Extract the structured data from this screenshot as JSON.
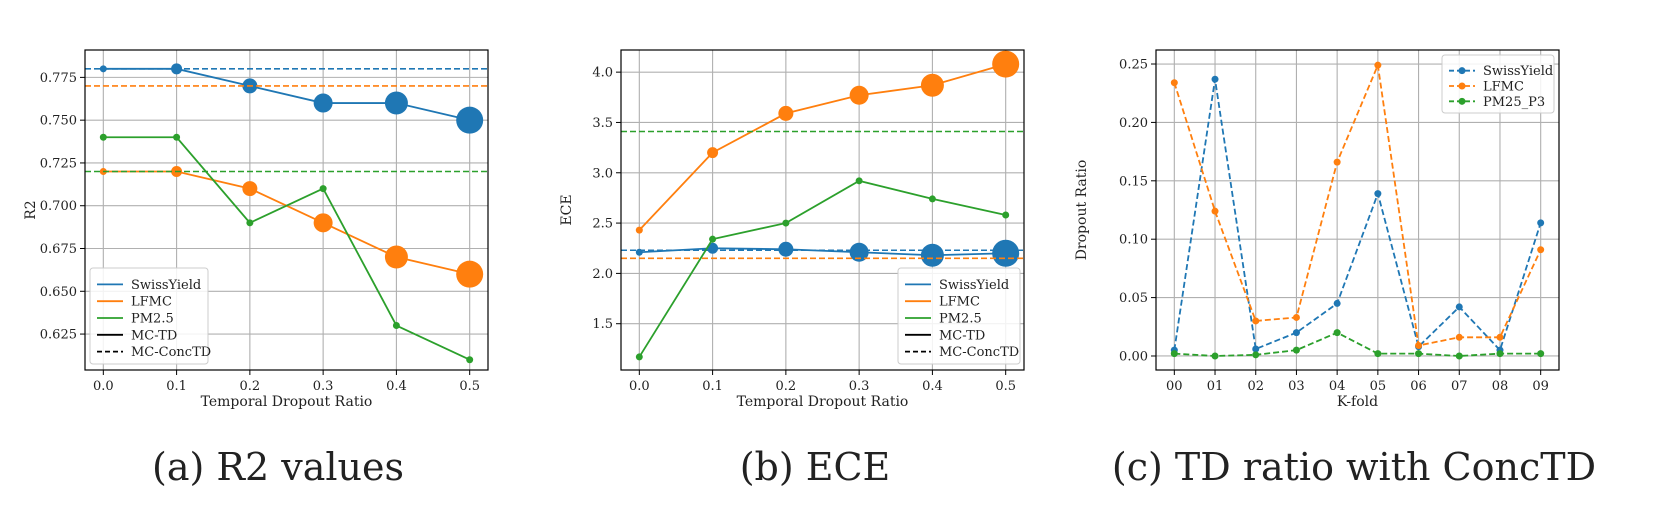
{
  "colors": {
    "blue": "#1f77b4",
    "orange": "#ff7f0e",
    "green": "#2ca02c",
    "grid": "#b0b0b0",
    "frame": "#000000"
  },
  "chart_data": [
    {
      "id": "a",
      "type": "line",
      "caption": "(a) R2 values",
      "xlabel": "Temporal Dropout Ratio",
      "ylabel": "R2",
      "x": [
        0.0,
        0.1,
        0.2,
        0.3,
        0.4,
        0.5
      ],
      "xticklabels": [
        "0.0",
        "0.1",
        "0.2",
        "0.3",
        "0.4",
        "0.5"
      ],
      "xlim": [
        -0.025,
        0.525
      ],
      "ylim": [
        0.604,
        0.791
      ],
      "yticks": [
        0.625,
        0.65,
        0.675,
        0.7,
        0.725,
        0.75,
        0.775
      ],
      "yticklabels": [
        "0.625",
        "0.650",
        "0.675",
        "0.700",
        "0.725",
        "0.750",
        "0.775"
      ],
      "series": [
        {
          "name": "SwissYield",
          "color_key": "blue",
          "values": [
            0.78,
            0.78,
            0.77,
            0.76,
            0.76,
            0.75
          ],
          "marker_growth": true,
          "hline": 0.78
        },
        {
          "name": "LFMC",
          "color_key": "orange",
          "values": [
            0.72,
            0.72,
            0.71,
            0.69,
            0.67,
            0.66
          ],
          "marker_growth": true,
          "hline": 0.77
        },
        {
          "name": "PM2.5",
          "color_key": "green",
          "values": [
            0.74,
            0.74,
            0.69,
            0.71,
            0.63,
            0.61
          ],
          "marker_growth": false,
          "hline": 0.72
        }
      ],
      "legend": {
        "position": "lower-left",
        "entries": [
          {
            "label": "SwissYield",
            "color_key": "blue",
            "style": "solid"
          },
          {
            "label": "LFMC",
            "color_key": "orange",
            "style": "solid"
          },
          {
            "label": "PM2.5",
            "color_key": "green",
            "style": "solid"
          },
          {
            "label": "MC-TD",
            "color_key": "frame",
            "style": "solid"
          },
          {
            "label": "MC-ConcTD",
            "color_key": "frame",
            "style": "dashed"
          }
        ]
      }
    },
    {
      "id": "b",
      "type": "line",
      "caption": "(b) ECE",
      "xlabel": "Temporal Dropout Ratio",
      "ylabel": "ECE",
      "x": [
        0.0,
        0.1,
        0.2,
        0.3,
        0.4,
        0.5
      ],
      "xticklabels": [
        "0.0",
        "0.1",
        "0.2",
        "0.3",
        "0.4",
        "0.5"
      ],
      "xlim": [
        -0.025,
        0.525
      ],
      "ylim": [
        1.04,
        4.22
      ],
      "yticks": [
        1.5,
        2.0,
        2.5,
        3.0,
        3.5,
        4.0
      ],
      "yticklabels": [
        "1.5",
        "2.0",
        "2.5",
        "3.0",
        "3.5",
        "4.0"
      ],
      "series": [
        {
          "name": "SwissYield",
          "color_key": "blue",
          "values": [
            2.21,
            2.25,
            2.24,
            2.21,
            2.18,
            2.2
          ],
          "marker_growth": true,
          "hline": 2.23
        },
        {
          "name": "LFMC",
          "color_key": "orange",
          "values": [
            2.43,
            3.2,
            3.59,
            3.77,
            3.87,
            4.08
          ],
          "marker_growth": true,
          "hline": 2.15
        },
        {
          "name": "PM2.5",
          "color_key": "green",
          "values": [
            1.17,
            2.34,
            2.5,
            2.92,
            2.74,
            2.58
          ],
          "marker_growth": false,
          "hline": 3.41
        }
      ],
      "legend": {
        "position": "lower-right",
        "entries": [
          {
            "label": "SwissYield",
            "color_key": "blue",
            "style": "solid"
          },
          {
            "label": "LFMC",
            "color_key": "orange",
            "style": "solid"
          },
          {
            "label": "PM2.5",
            "color_key": "green",
            "style": "solid"
          },
          {
            "label": "MC-TD",
            "color_key": "frame",
            "style": "solid"
          },
          {
            "label": "MC-ConcTD",
            "color_key": "frame",
            "style": "dashed"
          }
        ]
      }
    },
    {
      "id": "c",
      "type": "line",
      "caption": "(c) TD ratio with ConcTD",
      "xlabel": "K-fold",
      "ylabel": "Dropout Ratio",
      "categories": [
        "00",
        "01",
        "02",
        "03",
        "04",
        "05",
        "06",
        "07",
        "08",
        "09"
      ],
      "xlim": [
        -0.45,
        9.45
      ],
      "ylim": [
        -0.012,
        0.262
      ],
      "yticks": [
        0.0,
        0.05,
        0.1,
        0.15,
        0.2,
        0.25
      ],
      "yticklabels": [
        "0.00",
        "0.05",
        "0.10",
        "0.15",
        "0.20",
        "0.25"
      ],
      "series": [
        {
          "name": "SwissYield",
          "color_key": "blue",
          "values": [
            0.005,
            0.237,
            0.006,
            0.02,
            0.045,
            0.139,
            0.008,
            0.042,
            0.005,
            0.114
          ]
        },
        {
          "name": "LFMC",
          "color_key": "orange",
          "values": [
            0.234,
            0.124,
            0.03,
            0.033,
            0.166,
            0.249,
            0.009,
            0.016,
            0.016,
            0.091
          ]
        },
        {
          "name": "PM25_P3",
          "color_key": "green",
          "values": [
            0.002,
            0.0,
            0.001,
            0.005,
            0.02,
            0.002,
            0.002,
            0.0,
            0.002,
            0.002
          ]
        }
      ],
      "legend": {
        "position": "top-right",
        "entries": [
          {
            "label": "SwissYield",
            "color_key": "blue",
            "style": "dashed-marker"
          },
          {
            "label": "LFMC",
            "color_key": "orange",
            "style": "dashed-marker"
          },
          {
            "label": "PM25_P3",
            "color_key": "green",
            "style": "dashed-marker"
          }
        ]
      }
    }
  ]
}
